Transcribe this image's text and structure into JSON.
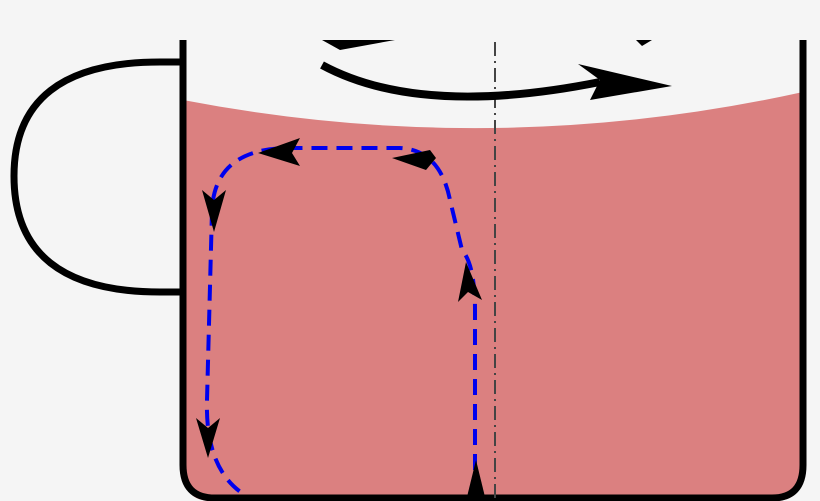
{
  "colors": {
    "background": "#f5f5f5",
    "liquid": "#db8080",
    "cup_outline": "#000000",
    "flow_path": "#0000ee",
    "axis_line": "#444444"
  }
}
